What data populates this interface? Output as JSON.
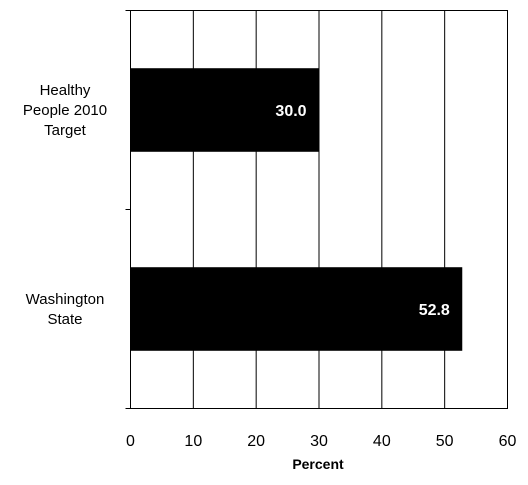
{
  "chart_data": {
    "type": "bar",
    "orientation": "horizontal",
    "categories": [
      [
        "Healthy",
        "People 2010",
        "Target"
      ],
      [
        "Washington",
        "State"
      ]
    ],
    "values": [
      30.0,
      52.8
    ],
    "data_labels": [
      "30.0",
      "52.8"
    ],
    "xlabel": "Percent",
    "xlim": [
      0,
      60
    ],
    "xticks": [
      0,
      10,
      20,
      30,
      40,
      50,
      60
    ],
    "grid": "vertical",
    "bar_color": "#000000",
    "label_color": "#ffffff"
  }
}
